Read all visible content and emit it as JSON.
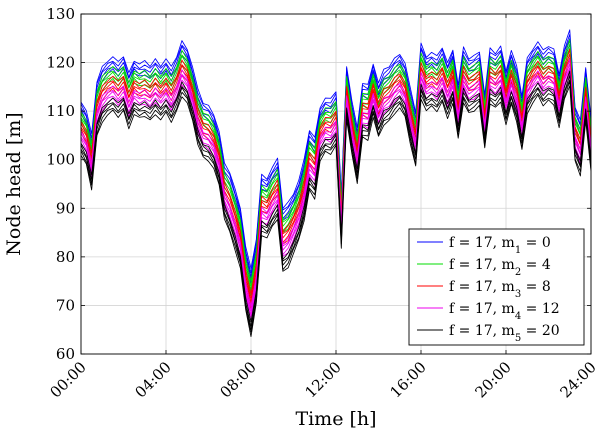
{
  "chart_data": {
    "type": "line",
    "xlabel": "Time [h]",
    "ylabel": "Node head [m]",
    "xlim": [
      0,
      24
    ],
    "ylim": [
      60,
      130
    ],
    "grid": true,
    "legend_position": "bottom-right",
    "x_ticks": [
      0,
      4,
      8,
      12,
      16,
      20,
      24
    ],
    "x_tick_labels": [
      "00:00",
      "04:00",
      "08:00",
      "12:00",
      "16:00",
      "20:00",
      "24:00"
    ],
    "y_ticks": [
      60,
      70,
      80,
      90,
      100,
      110,
      120,
      130
    ],
    "y_tick_labels": [
      "60",
      "70",
      "80",
      "90",
      "100",
      "110",
      "120",
      "130"
    ],
    "x": [
      0,
      0.25,
      0.5,
      0.75,
      1,
      1.25,
      1.5,
      1.75,
      2,
      2.25,
      2.5,
      2.75,
      3,
      3.25,
      3.5,
      3.75,
      4,
      4.25,
      4.5,
      4.75,
      5,
      5.25,
      5.5,
      5.75,
      6,
      6.25,
      6.5,
      6.75,
      7,
      7.25,
      7.5,
      7.75,
      8,
      8.25,
      8.5,
      8.75,
      9,
      9.25,
      9.5,
      9.75,
      10,
      10.25,
      10.5,
      10.75,
      11,
      11.25,
      11.5,
      11.75,
      12,
      12.25,
      12.5,
      12.75,
      13,
      13.25,
      13.5,
      13.75,
      14,
      14.25,
      14.5,
      14.75,
      15,
      15.25,
      15.5,
      15.75,
      16,
      16.25,
      16.5,
      16.75,
      17,
      17.25,
      17.5,
      17.75,
      18,
      18.25,
      18.5,
      18.75,
      19,
      19.25,
      19.5,
      19.75,
      20,
      20.25,
      20.5,
      20.75,
      21,
      21.25,
      21.5,
      21.75,
      22,
      22.25,
      22.5,
      22.75,
      23,
      23.25,
      23.5,
      23.75,
      24
    ],
    "series": [
      {
        "name": "f = 17, m1 = 0",
        "color": "#0000ff",
        "values": [
          110.5,
          108.5,
          103.5,
          114.5,
          117.5,
          118.8,
          119.6,
          118.4,
          119.7,
          116.2,
          118.9,
          118.1,
          118.6,
          117.7,
          119.1,
          117.8,
          119.2,
          117.4,
          119.6,
          122.8,
          121.3,
          117.5,
          112.8,
          110.1,
          109.5,
          107.8,
          104.2,
          97.5,
          95.8,
          92.3,
          88.6,
          80.5,
          75.8,
          82.1,
          95.3,
          94.6,
          96.8,
          98.5,
          88.5,
          89.6,
          91.5,
          94.2,
          98.3,
          104.5,
          102.9,
          109.3,
          111.1,
          110.8,
          112.5,
          91.6,
          117.8,
          110.5,
          104.8,
          114.2,
          113.8,
          118.3,
          114.2,
          116.8,
          117.6,
          119.2,
          120.3,
          118.3,
          112.9,
          108.2,
          122.3,
          119.7,
          120.5,
          119.6,
          121.5,
          118.3,
          121.2,
          113.8,
          121.4,
          119.2,
          119.8,
          120.8,
          111.8,
          121.2,
          120.3,
          121.7,
          116.8,
          120.9,
          117.5,
          111.6,
          119.3,
          121.2,
          122.7,
          120.8,
          121.8,
          121.1,
          116.2,
          121.9,
          124.9,
          109.3,
          106.5,
          117.6,
          107.0
        ]
      },
      {
        "name": "f = 17, m2 = 4",
        "color": "#00dd00",
        "values": [
          108.5,
          106.5,
          101.5,
          112.5,
          115.5,
          116.8,
          117.6,
          116.4,
          117.7,
          114.2,
          116.9,
          116.1,
          116.6,
          115.7,
          117.1,
          115.8,
          117.2,
          115.4,
          117.6,
          120.8,
          119.3,
          115.5,
          110.8,
          108.1,
          107.5,
          105.8,
          102.2,
          95.5,
          93.5,
          90.0,
          86.3,
          78.0,
          73.2,
          79.6,
          93.0,
          92.3,
          94.5,
          96.2,
          86.0,
          87.1,
          89.2,
          91.9,
          96.0,
          102.2,
          100.6,
          107.3,
          109.1,
          108.8,
          110.5,
          89.6,
          115.8,
          108.5,
          102.8,
          112.2,
          111.8,
          116.3,
          112.2,
          114.8,
          115.6,
          117.2,
          118.3,
          116.3,
          110.9,
          106.2,
          120.3,
          117.7,
          118.5,
          117.6,
          119.5,
          116.3,
          119.2,
          111.8,
          119.4,
          117.2,
          117.8,
          118.8,
          109.8,
          119.2,
          118.3,
          119.7,
          114.8,
          118.9,
          115.5,
          109.6,
          117.3,
          119.2,
          120.7,
          118.8,
          119.8,
          119.1,
          114.2,
          119.9,
          122.9,
          107.3,
          104.5,
          115.6,
          105.0
        ]
      },
      {
        "name": "f = 17, m3 = 8",
        "color": "#ff0000",
        "values": [
          106.5,
          104.5,
          99.5,
          110.5,
          113.5,
          114.8,
          115.6,
          114.4,
          115.7,
          112.2,
          114.9,
          114.1,
          114.6,
          113.7,
          115.1,
          113.8,
          115.2,
          113.4,
          115.6,
          118.8,
          117.3,
          113.5,
          108.8,
          106.1,
          105.5,
          103.8,
          100.2,
          93.5,
          91.3,
          87.8,
          84.0,
          75.6,
          70.6,
          77.1,
          90.8,
          90.1,
          92.3,
          94.0,
          83.6,
          84.7,
          87.0,
          89.7,
          93.8,
          100.0,
          98.4,
          105.3,
          107.1,
          106.8,
          108.5,
          87.6,
          113.8,
          106.5,
          100.8,
          110.2,
          109.8,
          114.3,
          110.2,
          112.8,
          113.6,
          115.2,
          116.3,
          114.3,
          108.9,
          104.2,
          118.3,
          115.7,
          116.5,
          115.6,
          117.5,
          114.3,
          117.2,
          109.8,
          117.4,
          115.2,
          115.8,
          116.8,
          107.8,
          117.2,
          116.3,
          117.7,
          112.8,
          116.9,
          113.5,
          107.6,
          115.3,
          117.2,
          118.7,
          116.8,
          117.8,
          117.1,
          112.2,
          117.9,
          120.9,
          105.3,
          102.5,
          113.6,
          103.0
        ]
      },
      {
        "name": "f = 17, m4 = 12",
        "color": "#ee00ee",
        "values": [
          104.5,
          102.5,
          97.5,
          108.5,
          111.5,
          112.8,
          113.6,
          112.4,
          113.7,
          110.2,
          112.9,
          112.1,
          112.6,
          111.7,
          113.1,
          111.8,
          113.2,
          111.4,
          113.6,
          116.8,
          115.3,
          111.5,
          106.8,
          104.1,
          103.5,
          101.8,
          98.2,
          91.5,
          89.0,
          85.5,
          81.7,
          73.1,
          68.0,
          74.6,
          88.5,
          87.8,
          90.0,
          91.7,
          81.1,
          82.2,
          84.7,
          87.4,
          91.5,
          97.7,
          96.1,
          103.3,
          105.1,
          104.8,
          106.5,
          85.6,
          111.8,
          104.5,
          98.8,
          108.2,
          107.8,
          112.3,
          108.2,
          110.8,
          111.6,
          113.2,
          114.3,
          112.3,
          106.9,
          102.2,
          116.3,
          113.7,
          114.5,
          113.6,
          115.5,
          112.3,
          115.2,
          107.8,
          115.4,
          113.2,
          113.8,
          114.8,
          105.8,
          115.2,
          114.3,
          115.7,
          110.8,
          114.9,
          111.5,
          105.6,
          113.3,
          115.2,
          116.7,
          114.8,
          115.8,
          115.1,
          110.2,
          115.9,
          118.9,
          103.3,
          100.5,
          111.6,
          101.0
        ]
      },
      {
        "name": "f = 17, m5 = 20",
        "color": "#000000",
        "values": [
          102.0,
          100.0,
          95.0,
          106.0,
          109.0,
          110.3,
          111.1,
          109.9,
          111.2,
          107.7,
          110.4,
          109.6,
          110.1,
          109.2,
          110.6,
          109.3,
          110.7,
          108.9,
          111.1,
          114.3,
          112.8,
          109.0,
          104.3,
          101.6,
          101.0,
          99.3,
          95.7,
          89.0,
          86.2,
          82.7,
          78.8,
          70.0,
          64.8,
          71.5,
          85.7,
          85.0,
          87.2,
          88.9,
          78.0,
          79.1,
          81.8,
          84.5,
          88.6,
          94.8,
          93.2,
          100.8,
          102.6,
          102.3,
          104.0,
          83.1,
          109.3,
          102.0,
          96.3,
          105.7,
          105.3,
          109.8,
          105.7,
          108.3,
          109.1,
          110.7,
          111.8,
          109.8,
          104.4,
          99.7,
          113.8,
          111.2,
          112.0,
          111.1,
          113.0,
          109.8,
          112.7,
          105.3,
          112.9,
          110.7,
          111.3,
          112.3,
          103.3,
          112.7,
          111.8,
          113.2,
          108.3,
          112.4,
          109.0,
          103.1,
          110.8,
          112.7,
          114.2,
          112.3,
          113.3,
          112.6,
          107.7,
          113.4,
          116.4,
          100.8,
          98.0,
          109.1,
          98.5
        ]
      }
    ],
    "legend": [
      {
        "prefix": "f = 17, m",
        "sub": "1",
        "suffix": " = 0"
      },
      {
        "prefix": "f = 17, m",
        "sub": "2",
        "suffix": " = 4"
      },
      {
        "prefix": "f = 17, m",
        "sub": "3",
        "suffix": " = 8"
      },
      {
        "prefix": "f = 17, m",
        "sub": "4",
        "suffix": " = 12"
      },
      {
        "prefix": "f = 17, m",
        "sub": "5",
        "suffix": " = 20"
      }
    ]
  }
}
